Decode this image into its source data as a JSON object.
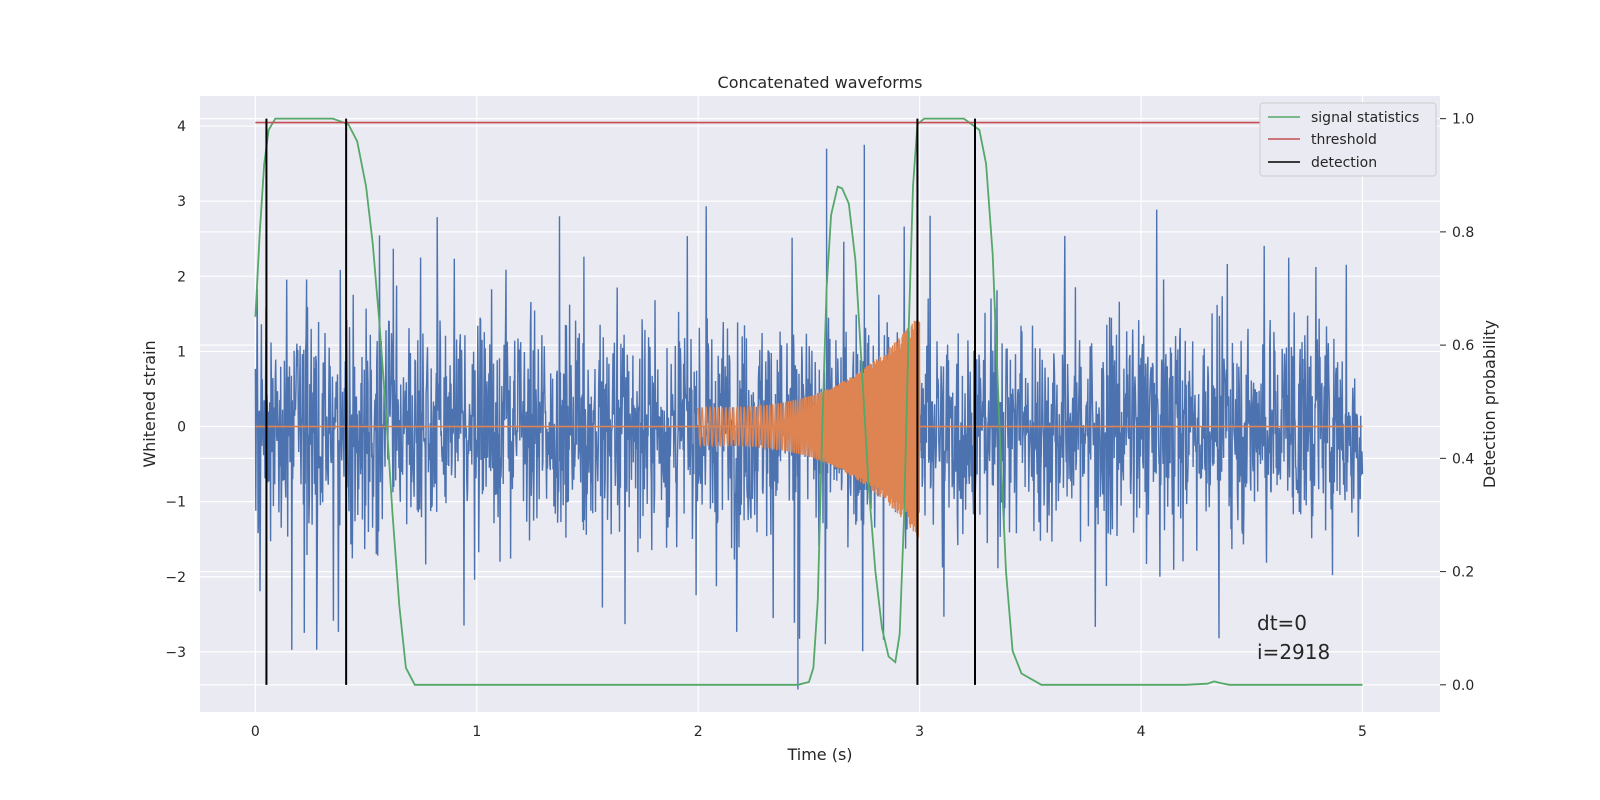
{
  "chart_data": {
    "type": "line",
    "title": "Concatenated waveforms",
    "xlabel": "Time (s)",
    "ylabel_left": "Whitened strain",
    "ylabel_right": "Detection probability",
    "xlim": [
      -0.25,
      5.35
    ],
    "ylim_left": [
      -3.8,
      4.4
    ],
    "ylim_right": [
      -0.048,
      1.04
    ],
    "xticks": [
      0,
      1,
      2,
      3,
      4,
      5
    ],
    "xtick_labels": [
      "0",
      "1",
      "2",
      "3",
      "4",
      "5"
    ],
    "yticks_left": [
      -3,
      -2,
      -1,
      0,
      1,
      2,
      3,
      4
    ],
    "ytick_labels_left": [
      "−3",
      "−2",
      "−1",
      "0",
      "1",
      "2",
      "3",
      "4"
    ],
    "yticks_right": [
      0.0,
      0.2,
      0.4,
      0.6,
      0.8,
      1.0
    ],
    "ytick_labels_right": [
      "0.0",
      "0.2",
      "0.4",
      "0.6",
      "0.8",
      "1.0"
    ],
    "grid": true,
    "legend_position": "top-right",
    "colors": {
      "background": "#eaeaf2",
      "grid": "#ffffff",
      "strain": "#4c72b0",
      "waveform": "#dd8452",
      "signal": "#55a868",
      "threshold": "#c44e52",
      "detection": "#000000"
    },
    "legend": [
      {
        "label": "signal statistics",
        "color": "#55a868"
      },
      {
        "label": "threshold",
        "color": "#c44e52"
      },
      {
        "label": "detection",
        "color": "#000000"
      }
    ],
    "series": [
      {
        "name": "signal statistics",
        "axis": "right",
        "points": [
          [
            0,
            0.65
          ],
          [
            0.02,
            0.8
          ],
          [
            0.04,
            0.92
          ],
          [
            0.06,
            0.98
          ],
          [
            0.09,
            1.0
          ],
          [
            0.2,
            1.0
          ],
          [
            0.35,
            1.0
          ],
          [
            0.42,
            0.99
          ],
          [
            0.46,
            0.96
          ],
          [
            0.5,
            0.88
          ],
          [
            0.53,
            0.78
          ],
          [
            0.56,
            0.64
          ],
          [
            0.59,
            0.48
          ],
          [
            0.62,
            0.3
          ],
          [
            0.65,
            0.14
          ],
          [
            0.68,
            0.03
          ],
          [
            0.72,
            0.0
          ],
          [
            1.0,
            0.0
          ],
          [
            2.0,
            0.0
          ],
          [
            2.45,
            0.0
          ],
          [
            2.5,
            0.005
          ],
          [
            2.52,
            0.03
          ],
          [
            2.54,
            0.15
          ],
          [
            2.56,
            0.45
          ],
          [
            2.58,
            0.7
          ],
          [
            2.6,
            0.83
          ],
          [
            2.63,
            0.88
          ],
          [
            2.65,
            0.877
          ],
          [
            2.68,
            0.85
          ],
          [
            2.71,
            0.75
          ],
          [
            2.74,
            0.55
          ],
          [
            2.77,
            0.35
          ],
          [
            2.8,
            0.2
          ],
          [
            2.83,
            0.1
          ],
          [
            2.86,
            0.05
          ],
          [
            2.89,
            0.04
          ],
          [
            2.91,
            0.09
          ],
          [
            2.93,
            0.3
          ],
          [
            2.95,
            0.62
          ],
          [
            2.97,
            0.88
          ],
          [
            2.99,
            0.99
          ],
          [
            3.02,
            1.0
          ],
          [
            3.2,
            1.0
          ],
          [
            3.27,
            0.98
          ],
          [
            3.3,
            0.92
          ],
          [
            3.33,
            0.76
          ],
          [
            3.36,
            0.46
          ],
          [
            3.39,
            0.2
          ],
          [
            3.42,
            0.06
          ],
          [
            3.46,
            0.02
          ],
          [
            3.55,
            0.0
          ],
          [
            4.2,
            0.0
          ],
          [
            4.3,
            0.002
          ],
          [
            4.33,
            0.006
          ],
          [
            4.36,
            0.003
          ],
          [
            4.4,
            0.0
          ],
          [
            5.0,
            0.0
          ]
        ]
      },
      {
        "name": "threshold",
        "axis": "right",
        "points": [
          [
            0,
            0.993
          ],
          [
            5.0,
            0.993
          ]
        ]
      },
      {
        "name": "detection",
        "axis": "right",
        "x": [
          0.05,
          0.41,
          2.99,
          3.25
        ],
        "y_range": [
          0.0,
          1.0
        ]
      },
      {
        "name": "whitened strain",
        "axis": "left",
        "x_range": [
          0,
          5.0
        ],
        "typical_amplitude": 1.0,
        "peak_max": 3.75,
        "peak_min": -3.5
      },
      {
        "name": "waveform",
        "axis": "left",
        "x_range": [
          2.0,
          3.0
        ],
        "amplitude_start": 0.25,
        "amplitude_end": 1.5
      }
    ],
    "annotations": [
      "dt=0",
      "i=2918"
    ]
  }
}
